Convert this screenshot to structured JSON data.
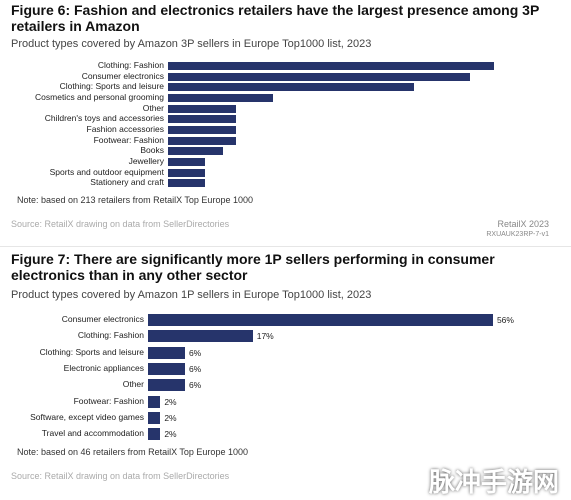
{
  "chart_data": [
    {
      "type": "bar",
      "orientation": "horizontal",
      "title": "Figure 6: Fashion and electronics retailers have the largest presence among 3P retailers in Amazon",
      "subtitle": "Product types covered by Amazon 3P sellers in Europe Top1000 list, 2023",
      "categories": [
        "Clothing: Fashion",
        "Consumer electronics",
        "Clothing: Sports and leisure",
        "Cosmetics and personal grooming",
        "Other",
        "Children's toys and accessories",
        "Fashion accessories",
        "Footwear: Fashion",
        "Books",
        "Jewellery",
        "Sports and outdoor equipment",
        "Stationery and craft"
      ],
      "values": [
        53,
        49,
        40,
        17,
        11,
        11,
        11,
        11,
        9,
        6,
        6,
        6
      ],
      "color": "#26346b",
      "xlim": [
        0,
        60
      ],
      "note": "Note: based on 213 retailers from RetailX Top Europe 1000",
      "source": "Source: RetailX drawing on data from SellerDirectories",
      "credit": "RetailX 2023",
      "code": "RXUAUK23RP-7-v1"
    },
    {
      "type": "bar",
      "orientation": "horizontal",
      "title": "Figure 7: There are significantly more 1P sellers performing in consumer electronics than in any other sector",
      "subtitle": "Product types covered by Amazon 1P sellers in Europe Top1000 list, 2023",
      "categories": [
        "Consumer electronics",
        "Clothing: Fashion",
        "Clothing: Sports and leisure",
        "Electronic appliances",
        "Other",
        "Footwear: Fashion",
        "Software, except video games",
        "Travel and accommodation"
      ],
      "values": [
        56,
        17,
        6,
        6,
        6,
        2,
        2,
        2
      ],
      "value_labels": [
        "56%",
        "17%",
        "6%",
        "6%",
        "6%",
        "2%",
        "2%",
        "2%"
      ],
      "color": "#26346b",
      "xlim": [
        0,
        60
      ],
      "note": "Note: based on 46 retailers from RetailX Top Europe 1000",
      "source": "Source: RetailX drawing on data from SellerDirectories"
    }
  ],
  "watermark": "脉冲手游网"
}
